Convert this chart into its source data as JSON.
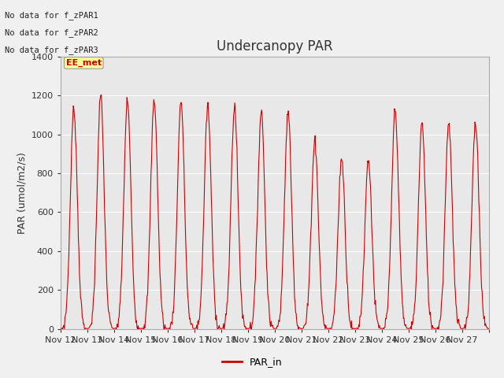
{
  "title": "Undercanopy PAR",
  "ylabel": "PAR (umol/m2/s)",
  "ylim": [
    0,
    1400
  ],
  "yticks": [
    0,
    200,
    400,
    600,
    800,
    1000,
    1200,
    1400
  ],
  "x_labels": [
    "Nov 12",
    "Nov 13",
    "Nov 14",
    "Nov 15",
    "Nov 16",
    "Nov 17",
    "Nov 18",
    "Nov 19",
    "Nov 20",
    "Nov 21",
    "Nov 22",
    "Nov 23",
    "Nov 24",
    "Nov 25",
    "Nov 26",
    "Nov 27"
  ],
  "no_data_labels": [
    "No data for f_zPAR1",
    "No data for f_zPAR2",
    "No data for f_zPAR3"
  ],
  "ee_met_label": "EE_met",
  "line_color": "#cc0000",
  "line_label": "PAR_in",
  "background_color": "#f0f0f0",
  "plot_bg_color": "#e8e8e8",
  "grid_color": "#ffffff",
  "n_days": 16,
  "peak_values": [
    1130,
    1200,
    1175,
    1180,
    1175,
    1145,
    1145,
    1120,
    1115,
    970,
    880,
    870,
    1125,
    1060,
    1065,
    1065
  ],
  "title_fontsize": 12,
  "axis_fontsize": 9,
  "tick_fontsize": 8,
  "figsize": [
    6.4,
    4.8
  ],
  "dpi": 100
}
